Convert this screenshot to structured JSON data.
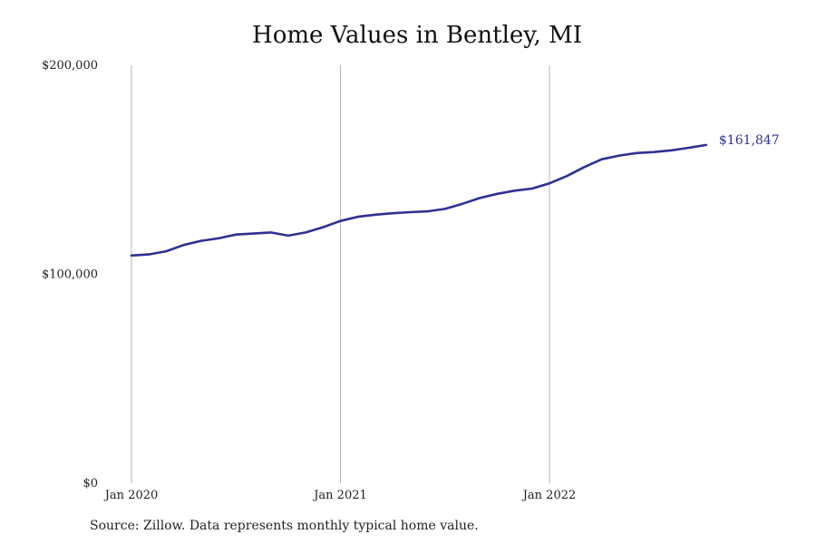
{
  "chart_data": {
    "type": "line",
    "title": "Home Values in Bentley, MI",
    "xlabel": "",
    "ylabel": "",
    "x_start": "Jan 2020",
    "x_frequency": "monthly",
    "x_ticks": [
      "Jan 2020",
      "Jan 2021",
      "Jan 2022"
    ],
    "y_ticks": [
      "$200,000",
      "$100,000",
      "$0"
    ],
    "ylim": [
      0,
      200000
    ],
    "grid": "vertical lines at x ticks",
    "legend": "none",
    "series": [
      {
        "color": "#2e3192",
        "x": [
          "Jan 2020",
          "Feb 2020",
          "Mar 2020",
          "Apr 2020",
          "May 2020",
          "Jun 2020",
          "Jul 2020",
          "Aug 2020",
          "Sep 2020",
          "Oct 2020",
          "Nov 2020",
          "Dec 2020",
          "Jan 2021",
          "Feb 2021",
          "Mar 2021",
          "Apr 2021",
          "May 2021",
          "Jun 2021",
          "Jul 2021",
          "Aug 2021",
          "Sep 2021",
          "Oct 2021",
          "Nov 2021",
          "Dec 2021",
          "Jan 2022",
          "Feb 2022",
          "Mar 2022",
          "Apr 2022",
          "May 2022",
          "Jun 2022",
          "Jul 2022",
          "Aug 2022",
          "Sep 2022",
          "Oct 2022"
        ],
        "values": [
          109000,
          109500,
          111000,
          114000,
          116000,
          117200,
          119000,
          119500,
          120000,
          118500,
          120000,
          122500,
          125500,
          127500,
          128500,
          129200,
          129700,
          130100,
          131300,
          133700,
          136500,
          138500,
          140000,
          141000,
          143500,
          147000,
          151300,
          155000,
          156800,
          158000,
          158500,
          159300,
          160500,
          161847
        ],
        "end_label": "$161,847"
      }
    ]
  },
  "source_text": "Source: Zillow. Data represents monthly typical home value."
}
